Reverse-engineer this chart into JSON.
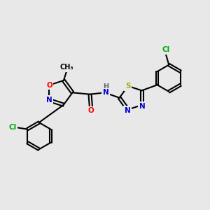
{
  "bg_color": "#e8e8e8",
  "bond_color": "#000000",
  "bond_width": 1.5,
  "atom_colors": {
    "O": "#ff0000",
    "N": "#0000cd",
    "S": "#aaaa00",
    "Cl": "#00aa00",
    "C": "#000000",
    "H": "#666666"
  },
  "font_size": 7.5,
  "fig_size": [
    3.0,
    3.0
  ],
  "dpi": 100,
  "xlim": [
    0,
    10
  ],
  "ylim": [
    0,
    10
  ]
}
